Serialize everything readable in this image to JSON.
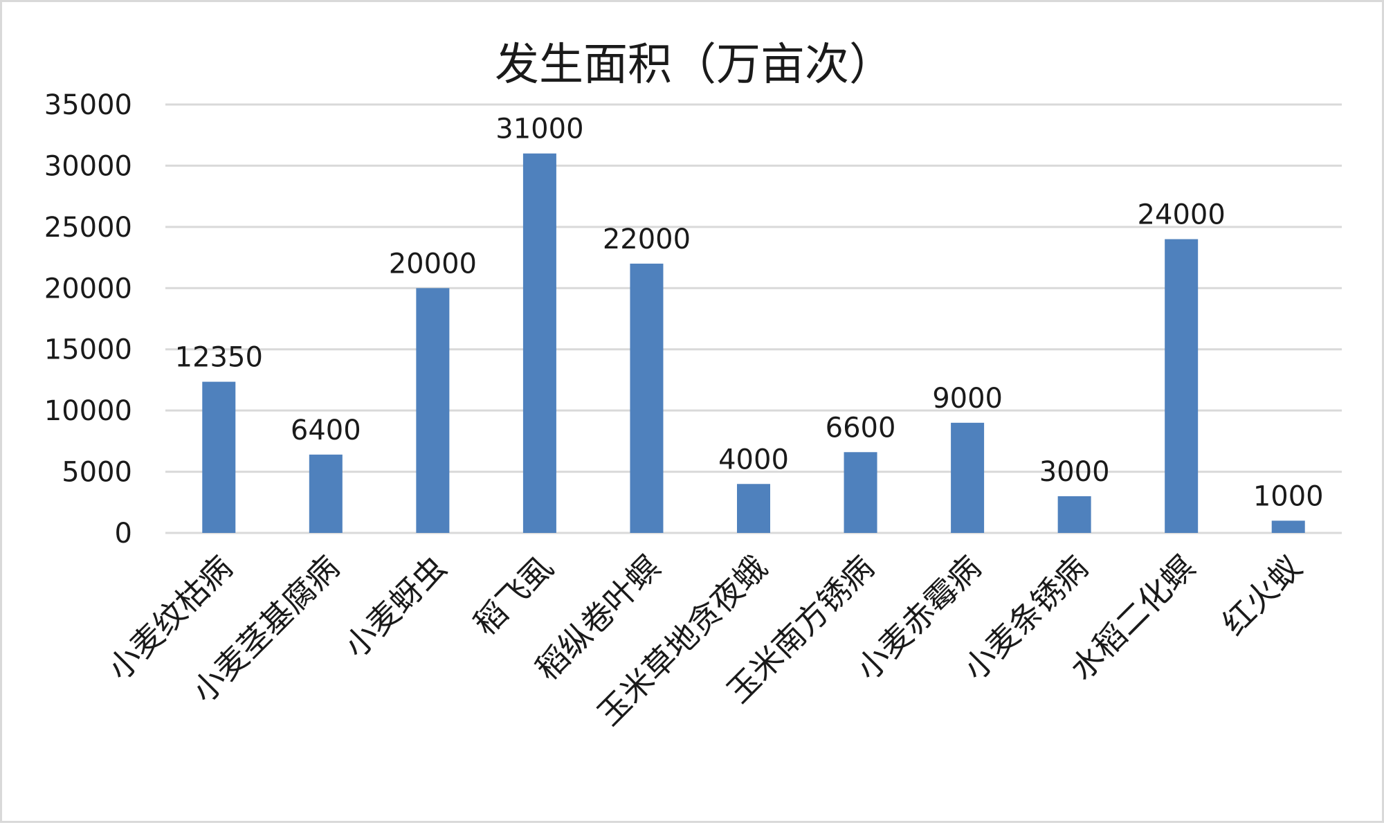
{
  "chart_data": {
    "type": "bar",
    "title": "发生面积（万亩次）",
    "xlabel": "",
    "ylabel": "",
    "categories": [
      "小麦纹枯病",
      "小麦茎基腐病",
      "小麦蚜虫",
      "稻飞虱",
      "稻纵卷叶螟",
      "玉米草地贪夜蛾",
      "玉米南方锈病",
      "小麦赤霉病",
      "小麦条锈病",
      "水稻二化螟",
      "红火蚁"
    ],
    "values": [
      12350,
      6400,
      20000,
      31000,
      22000,
      4000,
      6600,
      9000,
      3000,
      24000,
      1000
    ],
    "ylim": [
      0,
      35000
    ],
    "yticks": [
      0,
      5000,
      10000,
      15000,
      20000,
      25000,
      30000,
      35000
    ],
    "grid": true,
    "legend": "none",
    "data_labels": true,
    "bar_color": "#4f81bd",
    "gridline_color": "#d9d9d9",
    "text_color": "#1a1a1a"
  }
}
